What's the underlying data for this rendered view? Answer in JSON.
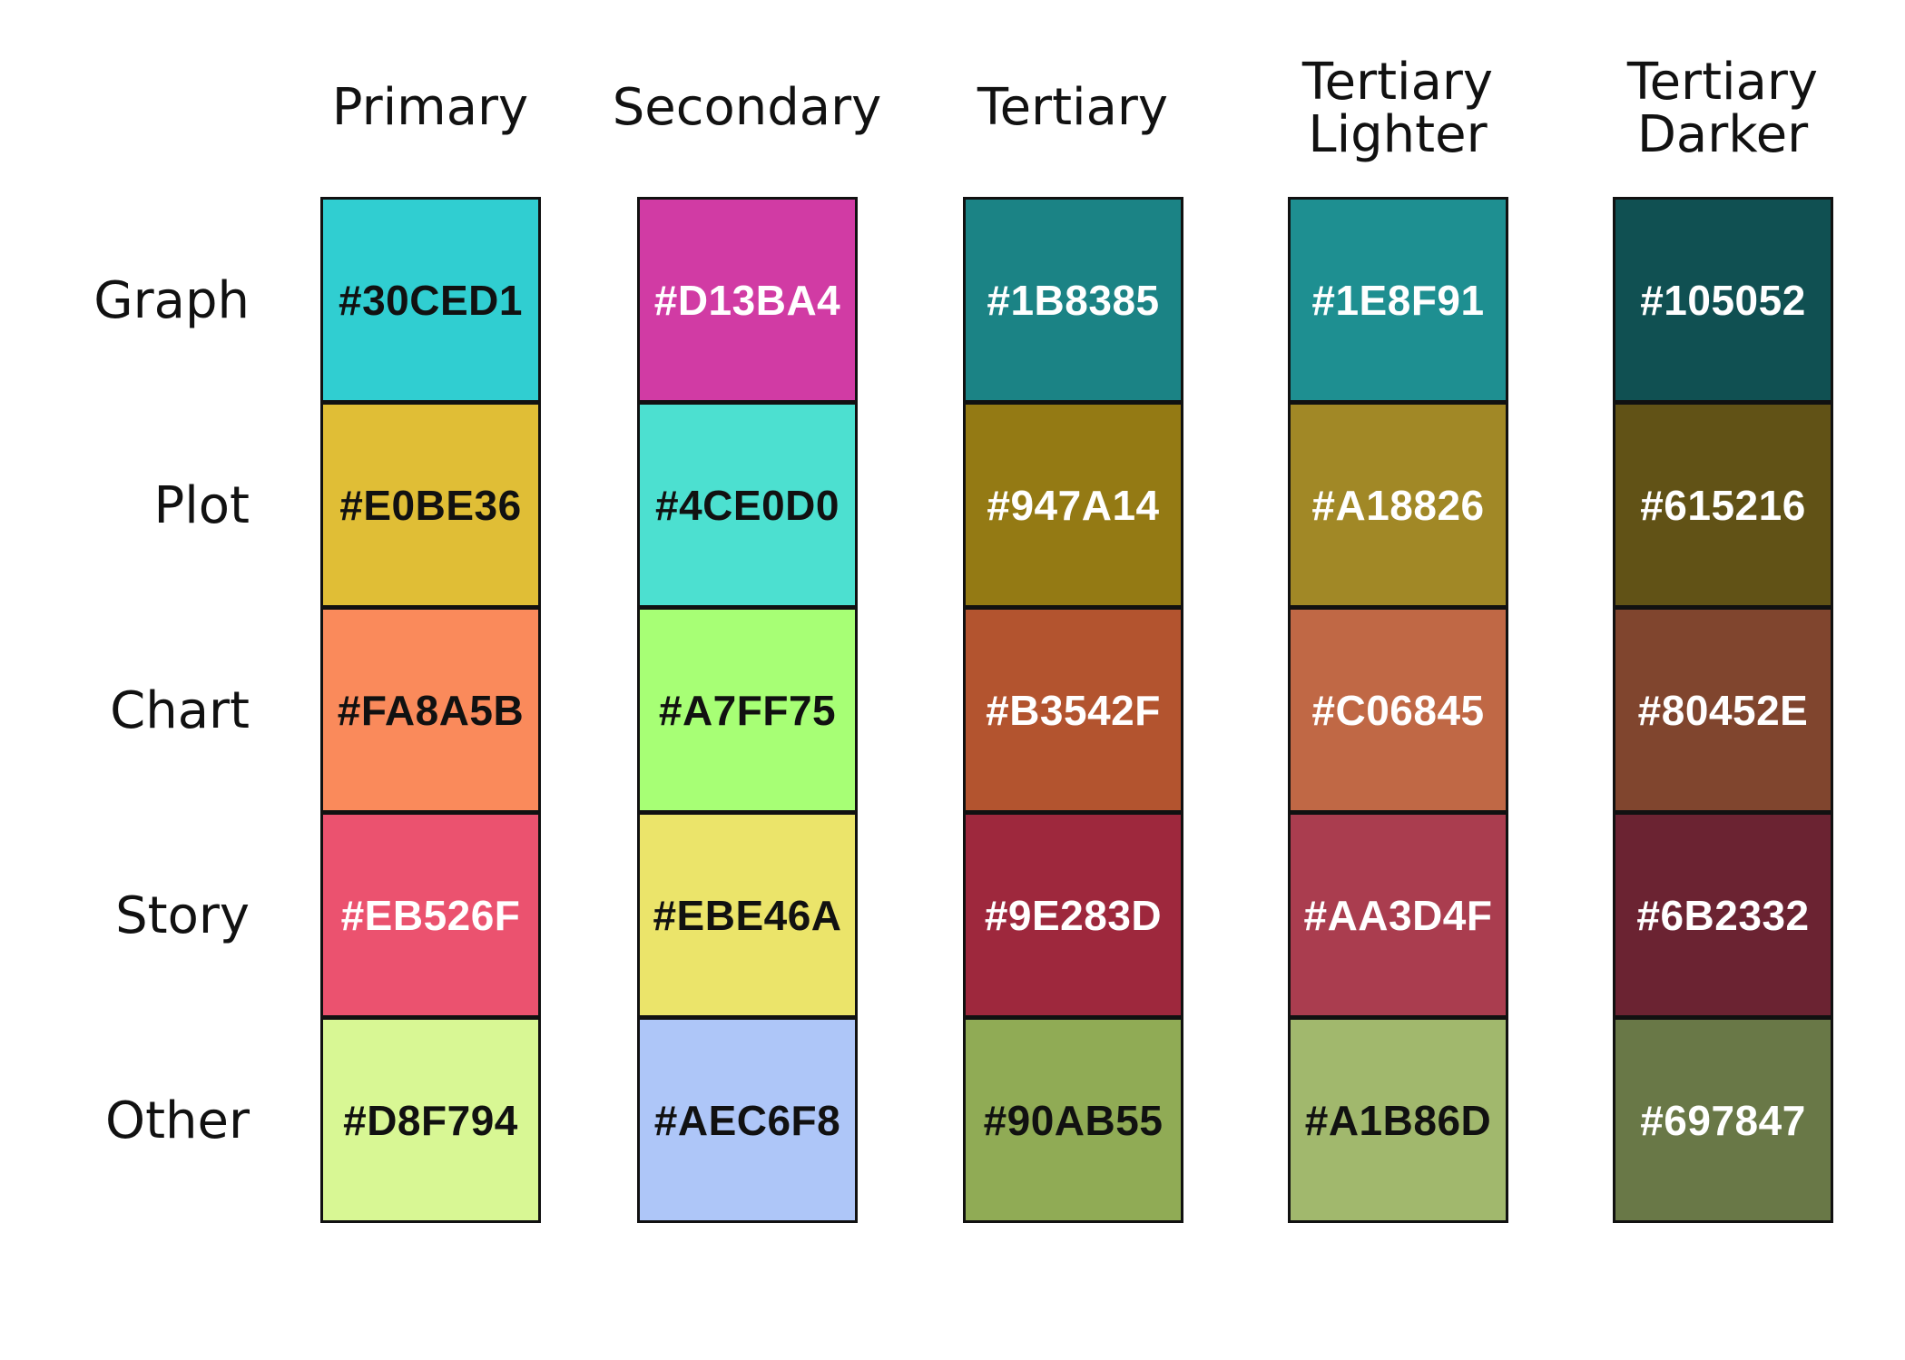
{
  "columns": [
    "Primary",
    "Secondary",
    "Tertiary",
    "Tertiary\nLighter",
    "Tertiary\nDarker"
  ],
  "rows": [
    {
      "label": "Graph",
      "colors": [
        "#30CED1",
        "#D13BA4",
        "#1B8385",
        "#1E8F91",
        "#105052"
      ]
    },
    {
      "label": "Plot",
      "colors": [
        "#E0BE36",
        "#4CE0D0",
        "#947A14",
        "#A18826",
        "#615216"
      ]
    },
    {
      "label": "Chart",
      "colors": [
        "#FA8A5B",
        "#A7FF75",
        "#B3542F",
        "#C06845",
        "#80452E"
      ]
    },
    {
      "label": "Story",
      "colors": [
        "#EB526F",
        "#EBE46A",
        "#9E283D",
        "#AA3D4F",
        "#6B2332"
      ]
    },
    {
      "label": "Other",
      "colors": [
        "#D8F794",
        "#AEC6F8",
        "#90AB55",
        "#A1B86D",
        "#697847"
      ]
    }
  ],
  "text_colors": {
    "dark": "#111111",
    "light": "#FFFFFF"
  }
}
